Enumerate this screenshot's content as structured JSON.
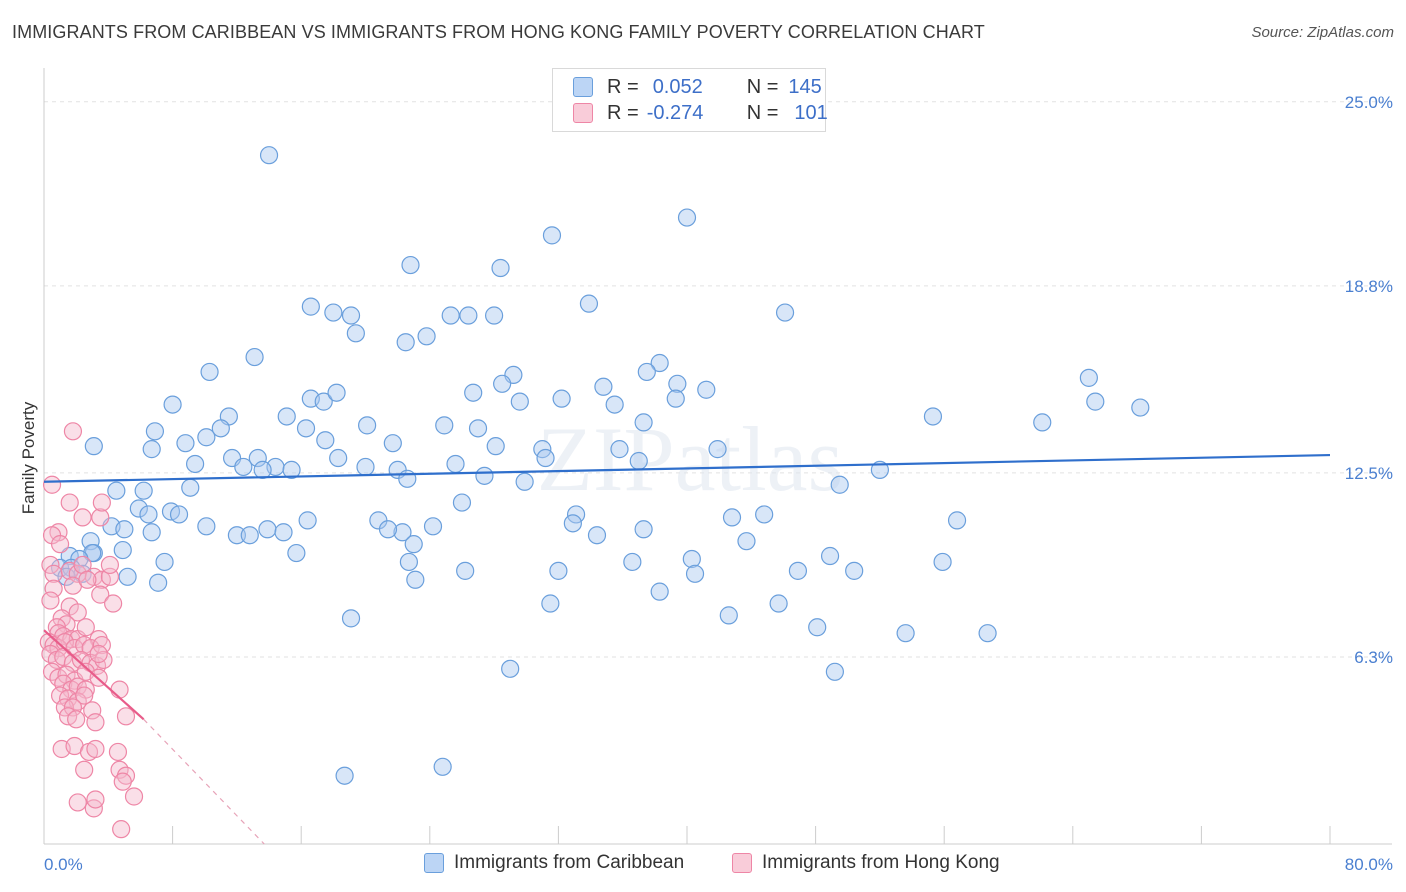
{
  "header": {
    "title": "IMMIGRANTS FROM CARIBBEAN VS IMMIGRANTS FROM HONG KONG FAMILY POVERTY CORRELATION CHART",
    "source": "Source: ZipAtlas.com"
  },
  "watermark": "ZIPatlas",
  "legend_top": {
    "rows": [
      {
        "r_label": "R =",
        "r_value": "0.052",
        "n_label": "N =",
        "n_value": "145"
      },
      {
        "r_label": "R =",
        "r_value": "-0.274",
        "n_label": "N =",
        "n_value": "101"
      }
    ]
  },
  "colors": {
    "blue_fill": "#a8c8f0",
    "blue_stroke": "#6a9fdc",
    "blue_line": "#2f6fcc",
    "pink_fill": "#f5b8cb",
    "pink_stroke": "#ee86a6",
    "pink_line": "#e85c8a",
    "tick_text": "#4a7fd0",
    "grid": "#e2e2e2"
  },
  "chart_data": {
    "type": "scatter",
    "xlabel": "",
    "ylabel": "Family Poverty",
    "xlim": [
      0,
      80
    ],
    "ylim": [
      0,
      25.8
    ],
    "x_ticks_labels": [
      "0.0%",
      "80.0%"
    ],
    "y_ticks": [
      6.3,
      12.5,
      18.8,
      25.0
    ],
    "y_tick_labels": [
      "6.3%",
      "12.5%",
      "18.8%",
      "25.0%"
    ],
    "legend_placement": "bottom",
    "grid": true,
    "series": [
      {
        "name": "Immigrants from Caribbean",
        "color": "#6a9fdc",
        "trend": {
          "x": [
            0,
            80
          ],
          "y": [
            12.2,
            13.1
          ]
        },
        "points": [
          [
            14.0,
            23.2
          ],
          [
            40.0,
            21.1
          ],
          [
            31.6,
            20.5
          ],
          [
            22.8,
            19.5
          ],
          [
            28.4,
            19.4
          ],
          [
            16.6,
            18.1
          ],
          [
            18.0,
            17.9
          ],
          [
            19.1,
            17.8
          ],
          [
            25.3,
            17.8
          ],
          [
            26.4,
            17.8
          ],
          [
            28.0,
            17.8
          ],
          [
            33.9,
            18.2
          ],
          [
            46.1,
            17.9
          ],
          [
            19.4,
            17.2
          ],
          [
            22.5,
            16.9
          ],
          [
            23.8,
            17.1
          ],
          [
            13.1,
            16.4
          ],
          [
            38.3,
            16.2
          ],
          [
            37.5,
            15.9
          ],
          [
            10.3,
            15.9
          ],
          [
            29.2,
            15.8
          ],
          [
            28.5,
            15.5
          ],
          [
            34.8,
            15.4
          ],
          [
            39.4,
            15.5
          ],
          [
            41.2,
            15.3
          ],
          [
            26.7,
            15.2
          ],
          [
            16.6,
            15.0
          ],
          [
            17.4,
            14.9
          ],
          [
            18.2,
            15.2
          ],
          [
            29.6,
            14.9
          ],
          [
            32.2,
            15.0
          ],
          [
            35.5,
            14.8
          ],
          [
            39.3,
            15.0
          ],
          [
            65.0,
            15.7
          ],
          [
            65.4,
            14.9
          ],
          [
            68.2,
            14.7
          ],
          [
            8.0,
            14.8
          ],
          [
            11.5,
            14.4
          ],
          [
            11.0,
            14.0
          ],
          [
            15.1,
            14.4
          ],
          [
            16.3,
            14.0
          ],
          [
            20.1,
            14.1
          ],
          [
            24.9,
            14.1
          ],
          [
            27.0,
            14.0
          ],
          [
            37.3,
            14.2
          ],
          [
            55.3,
            14.4
          ],
          [
            62.1,
            14.2
          ],
          [
            6.9,
            13.9
          ],
          [
            10.1,
            13.7
          ],
          [
            8.8,
            13.5
          ],
          [
            17.5,
            13.6
          ],
          [
            21.7,
            13.5
          ],
          [
            28.1,
            13.4
          ],
          [
            6.7,
            13.3
          ],
          [
            3.1,
            13.4
          ],
          [
            31.0,
            13.3
          ],
          [
            35.8,
            13.3
          ],
          [
            41.9,
            13.3
          ],
          [
            11.7,
            13.0
          ],
          [
            13.3,
            13.0
          ],
          [
            18.3,
            13.0
          ],
          [
            9.4,
            12.8
          ],
          [
            12.4,
            12.7
          ],
          [
            14.4,
            12.7
          ],
          [
            13.6,
            12.6
          ],
          [
            15.4,
            12.6
          ],
          [
            20.0,
            12.7
          ],
          [
            22.0,
            12.6
          ],
          [
            25.6,
            12.8
          ],
          [
            31.2,
            13.0
          ],
          [
            37.0,
            12.9
          ],
          [
            52.0,
            12.6
          ],
          [
            22.6,
            12.3
          ],
          [
            27.4,
            12.4
          ],
          [
            29.9,
            12.2
          ],
          [
            49.5,
            12.1
          ],
          [
            9.1,
            12.0
          ],
          [
            6.2,
            11.9
          ],
          [
            4.5,
            11.9
          ],
          [
            5.9,
            11.3
          ],
          [
            7.9,
            11.2
          ],
          [
            8.4,
            11.1
          ],
          [
            6.5,
            11.1
          ],
          [
            26.0,
            11.5
          ],
          [
            33.1,
            11.1
          ],
          [
            16.4,
            10.9
          ],
          [
            20.8,
            10.9
          ],
          [
            24.2,
            10.7
          ],
          [
            32.9,
            10.8
          ],
          [
            42.8,
            11.0
          ],
          [
            44.8,
            11.1
          ],
          [
            56.8,
            10.9
          ],
          [
            22.3,
            10.5
          ],
          [
            21.4,
            10.6
          ],
          [
            10.1,
            10.7
          ],
          [
            4.2,
            10.7
          ],
          [
            5.0,
            10.6
          ],
          [
            6.7,
            10.5
          ],
          [
            12.0,
            10.4
          ],
          [
            12.8,
            10.4
          ],
          [
            13.9,
            10.6
          ],
          [
            14.9,
            10.5
          ],
          [
            34.4,
            10.4
          ],
          [
            37.3,
            10.6
          ],
          [
            2.9,
            10.2
          ],
          [
            4.9,
            9.9
          ],
          [
            3.1,
            9.8
          ],
          [
            15.7,
            9.8
          ],
          [
            23.0,
            10.1
          ],
          [
            43.7,
            10.2
          ],
          [
            48.9,
            9.7
          ],
          [
            55.9,
            9.5
          ],
          [
            1.6,
            9.7
          ],
          [
            3.0,
            9.8
          ],
          [
            2.2,
            9.6
          ],
          [
            7.5,
            9.5
          ],
          [
            22.7,
            9.5
          ],
          [
            36.6,
            9.5
          ],
          [
            40.3,
            9.6
          ],
          [
            1.0,
            9.3
          ],
          [
            1.7,
            9.3
          ],
          [
            2.4,
            9.1
          ],
          [
            1.4,
            9.0
          ],
          [
            5.2,
            9.0
          ],
          [
            26.2,
            9.2
          ],
          [
            32.0,
            9.2
          ],
          [
            40.5,
            9.1
          ],
          [
            46.9,
            9.2
          ],
          [
            50.4,
            9.2
          ],
          [
            7.1,
            8.8
          ],
          [
            23.1,
            8.9
          ],
          [
            38.3,
            8.5
          ],
          [
            31.5,
            8.1
          ],
          [
            45.7,
            8.1
          ],
          [
            19.1,
            7.6
          ],
          [
            42.6,
            7.7
          ],
          [
            48.1,
            7.3
          ],
          [
            53.6,
            7.1
          ],
          [
            58.7,
            7.1
          ],
          [
            29.0,
            5.9
          ],
          [
            49.2,
            5.8
          ],
          [
            18.7,
            2.3
          ],
          [
            24.8,
            2.6
          ]
        ]
      },
      {
        "name": "Immigrants from Hong Kong",
        "color": "#ee86a6",
        "trend": {
          "x": [
            0,
            6.2
          ],
          "y": [
            7.2,
            4.2
          ]
        },
        "trend_extension": {
          "x": [
            6.2,
            13.7
          ],
          "y": [
            4.2,
            0.0
          ]
        },
        "points": [
          [
            1.8,
            13.9
          ],
          [
            0.5,
            12.1
          ],
          [
            1.6,
            11.5
          ],
          [
            0.9,
            10.5
          ],
          [
            2.4,
            11.0
          ],
          [
            3.5,
            11.0
          ],
          [
            3.6,
            11.5
          ],
          [
            0.5,
            10.4
          ],
          [
            1.0,
            10.1
          ],
          [
            0.4,
            9.4
          ],
          [
            0.6,
            9.1
          ],
          [
            1.6,
            9.2
          ],
          [
            2.1,
            9.1
          ],
          [
            2.4,
            9.4
          ],
          [
            3.1,
            9.0
          ],
          [
            3.6,
            8.9
          ],
          [
            4.1,
            9.0
          ],
          [
            4.1,
            9.4
          ],
          [
            0.6,
            8.6
          ],
          [
            1.8,
            8.7
          ],
          [
            2.7,
            8.9
          ],
          [
            3.5,
            8.4
          ],
          [
            4.3,
            8.1
          ],
          [
            0.4,
            8.2
          ],
          [
            1.6,
            8.0
          ],
          [
            2.1,
            7.8
          ],
          [
            1.1,
            7.6
          ],
          [
            1.4,
            7.4
          ],
          [
            0.8,
            7.3
          ],
          [
            0.9,
            7.1
          ],
          [
            1.2,
            7.0
          ],
          [
            1.7,
            6.9
          ],
          [
            2.1,
            6.9
          ],
          [
            2.6,
            7.3
          ],
          [
            3.4,
            6.9
          ],
          [
            0.3,
            6.8
          ],
          [
            0.6,
            6.7
          ],
          [
            0.9,
            6.6
          ],
          [
            1.3,
            6.8
          ],
          [
            1.9,
            6.6
          ],
          [
            2.5,
            6.7
          ],
          [
            2.9,
            6.6
          ],
          [
            3.6,
            6.7
          ],
          [
            0.4,
            6.4
          ],
          [
            0.8,
            6.2
          ],
          [
            1.2,
            6.3
          ],
          [
            1.8,
            6.1
          ],
          [
            2.3,
            6.2
          ],
          [
            2.9,
            6.1
          ],
          [
            3.3,
            6.0
          ],
          [
            3.7,
            6.2
          ],
          [
            3.4,
            6.4
          ],
          [
            0.5,
            5.8
          ],
          [
            0.9,
            5.6
          ],
          [
            1.4,
            5.7
          ],
          [
            1.9,
            5.5
          ],
          [
            2.6,
            5.8
          ],
          [
            3.4,
            5.6
          ],
          [
            1.2,
            5.4
          ],
          [
            1.7,
            5.2
          ],
          [
            2.1,
            5.3
          ],
          [
            2.6,
            5.2
          ],
          [
            1.0,
            5.0
          ],
          [
            1.5,
            4.9
          ],
          [
            2.1,
            4.8
          ],
          [
            2.5,
            5.0
          ],
          [
            1.3,
            4.6
          ],
          [
            1.8,
            4.6
          ],
          [
            3.0,
            4.5
          ],
          [
            4.7,
            5.2
          ],
          [
            1.5,
            4.3
          ],
          [
            2.0,
            4.2
          ],
          [
            3.2,
            4.1
          ],
          [
            5.1,
            4.3
          ],
          [
            1.1,
            3.2
          ],
          [
            1.9,
            3.3
          ],
          [
            2.8,
            3.1
          ],
          [
            3.2,
            3.2
          ],
          [
            4.6,
            3.1
          ],
          [
            2.5,
            2.5
          ],
          [
            4.7,
            2.5
          ],
          [
            5.1,
            2.3
          ],
          [
            4.9,
            2.1
          ],
          [
            2.1,
            1.4
          ],
          [
            3.1,
            1.2
          ],
          [
            3.2,
            1.5
          ],
          [
            5.6,
            1.6
          ],
          [
            4.8,
            0.5
          ]
        ]
      }
    ]
  },
  "legend_bottom": {
    "items": [
      {
        "label": "Immigrants from Caribbean"
      },
      {
        "label": "Immigrants from Hong Kong"
      }
    ]
  }
}
